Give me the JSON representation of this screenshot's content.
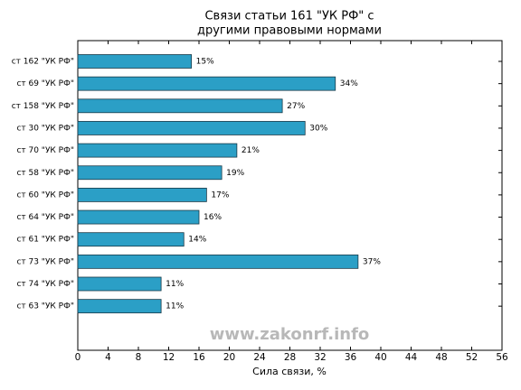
{
  "chart_data": {
    "type": "barh",
    "title": [
      "Связи статьи 161 \"УК РФ\" с",
      "другими правовыми нормами"
    ],
    "xlabel": "Сила связи, %",
    "annotation": "www.zakonrf.info",
    "categories": [
      "ст 162 \"УК РФ\"",
      "ст 69 \"УК РФ\"",
      "ст 158 \"УК РФ\"",
      "ст 30 \"УК РФ\"",
      "ст 70 \"УК РФ\"",
      "ст 58 \"УК РФ\"",
      "ст 60 \"УК РФ\"",
      "ст 64 \"УК РФ\"",
      "ст 61 \"УК РФ\"",
      "ст 73 \"УК РФ\"",
      "ст 74 \"УК РФ\"",
      "ст 63 \"УК РФ\""
    ],
    "values": [
      15,
      34,
      27,
      30,
      21,
      19,
      17,
      16,
      14,
      37,
      11,
      11
    ],
    "value_labels": [
      "15%",
      "34%",
      "27%",
      "30%",
      "21%",
      "19%",
      "17%",
      "16%",
      "14%",
      "37%",
      "11%",
      "11%"
    ],
    "color": "#2b9fc6",
    "xlim": [
      0,
      56
    ],
    "xticks": [
      0,
      4,
      8,
      12,
      16,
      20,
      24,
      28,
      32,
      36,
      40,
      44,
      48,
      52,
      56
    ],
    "grid": false
  }
}
